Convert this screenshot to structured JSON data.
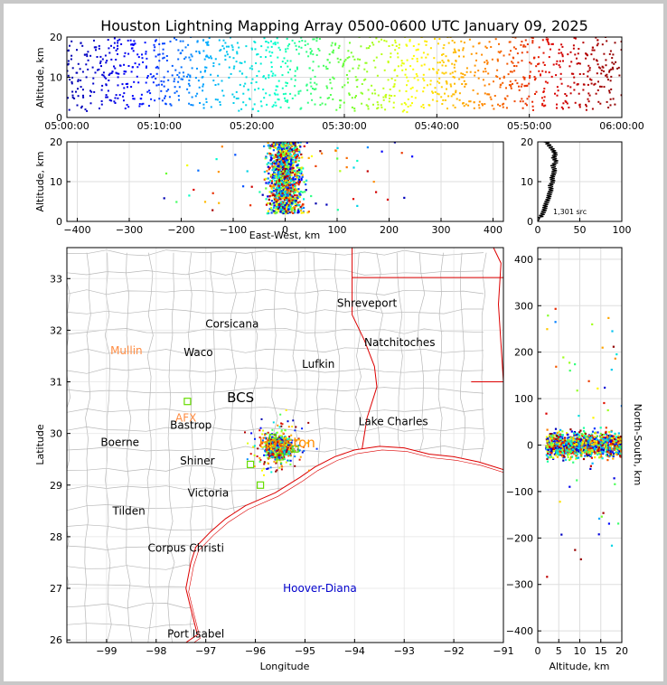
{
  "chart_data": [
    {
      "type": "scatter",
      "panel": "altitude-vs-time",
      "title": "Houston Lightning Mapping Array 0500-0600 UTC January 09, 2025",
      "ylabel": "Altitude, km",
      "xlabel": "",
      "xlim": [
        "05:00:00",
        "06:00:00"
      ],
      "ylim": [
        0,
        20
      ],
      "x_tick_labels": [
        "05:00:00",
        "05:10:00",
        "05:20:00",
        "05:30:00",
        "05:40:00",
        "05:50:00",
        "06:00:00"
      ],
      "y_ticks": [
        0,
        10,
        20
      ],
      "grid": true,
      "color_encoding": "time",
      "colors": [
        "#0000aa",
        "#0000ff",
        "#00aaff",
        "#00ffcc",
        "#66ff33",
        "#ffff00",
        "#ff8800",
        "#dd0000",
        "#880000"
      ]
    },
    {
      "type": "scatter",
      "panel": "altitude-vs-east-west",
      "xlabel": "East-West, km",
      "ylabel": "Altitude, km",
      "xlim": [
        -420,
        420
      ],
      "ylim": [
        0,
        20
      ],
      "x_ticks": [
        -400,
        -300,
        -200,
        -100,
        0,
        100,
        200,
        300,
        400
      ],
      "y_ticks": [
        0,
        10,
        20
      ],
      "grid": true
    },
    {
      "type": "line",
      "panel": "altitude-histogram",
      "xlim": [
        0,
        100
      ],
      "ylim": [
        0,
        20
      ],
      "x_ticks": [
        0,
        50,
        100
      ],
      "y_ticks": [
        0,
        10,
        20
      ],
      "annotation": "1,301 src",
      "grid": true,
      "profile": [
        {
          "altitude": 0,
          "count": 0
        },
        {
          "altitude": 1,
          "count": 3
        },
        {
          "altitude": 2,
          "count": 6
        },
        {
          "altitude": 3,
          "count": 8
        },
        {
          "altitude": 4,
          "count": 9
        },
        {
          "altitude": 5,
          "count": 11
        },
        {
          "altitude": 6,
          "count": 13
        },
        {
          "altitude": 7,
          "count": 14
        },
        {
          "altitude": 8,
          "count": 16
        },
        {
          "altitude": 9,
          "count": 15
        },
        {
          "altitude": 10,
          "count": 18
        },
        {
          "altitude": 11,
          "count": 17
        },
        {
          "altitude": 12,
          "count": 19
        },
        {
          "altitude": 13,
          "count": 20
        },
        {
          "altitude": 14,
          "count": 18
        },
        {
          "altitude": 15,
          "count": 22
        },
        {
          "altitude": 16,
          "count": 19
        },
        {
          "altitude": 17,
          "count": 21
        },
        {
          "altitude": 18,
          "count": 18
        },
        {
          "altitude": 19,
          "count": 14
        },
        {
          "altitude": 20,
          "count": 10
        }
      ]
    },
    {
      "type": "scatter",
      "panel": "plan-view-map",
      "xlabel": "Longitude",
      "ylabel": "Latitude",
      "xlim": [
        -99.8,
        -91
      ],
      "ylim": [
        25.95,
        33.6
      ],
      "x_ticks": [
        -99,
        -98,
        -97,
        -96,
        -95,
        -94,
        -93,
        -92,
        -91
      ],
      "y_ticks": [
        26,
        27,
        28,
        29,
        30,
        31,
        32,
        33
      ],
      "grid": true,
      "cities": [
        {
          "name": "Shreveport",
          "lon": -93.75,
          "lat": 32.52,
          "color": "#000000"
        },
        {
          "name": "Corsicana",
          "lon": -96.47,
          "lat": 32.12,
          "color": "#000000"
        },
        {
          "name": "Natchitoches",
          "lon": -93.09,
          "lat": 31.76,
          "color": "#000000"
        },
        {
          "name": "Mullin",
          "lon": -98.6,
          "lat": 31.6,
          "color": "#ff8c42"
        },
        {
          "name": "Waco",
          "lon": -97.15,
          "lat": 31.57,
          "color": "#000000"
        },
        {
          "name": "Lufkin",
          "lon": -94.73,
          "lat": 31.34,
          "color": "#000000"
        },
        {
          "name": "BCS",
          "lon": -96.3,
          "lat": 30.68,
          "color": "#000000"
        },
        {
          "name": "AFX",
          "lon": -97.4,
          "lat": 30.3,
          "color": "#ff8c42"
        },
        {
          "name": "Lake Charles",
          "lon": -93.22,
          "lat": 30.23,
          "color": "#000000"
        },
        {
          "name": "Bastrop",
          "lon": -97.3,
          "lat": 30.16,
          "color": "#000000"
        },
        {
          "name": "Boerne",
          "lon": -98.73,
          "lat": 29.83,
          "color": "#000000"
        },
        {
          "name": "Houston",
          "lon": -95.36,
          "lat": 29.8,
          "color": "#ff8c00"
        },
        {
          "name": "Shiner",
          "lon": -97.17,
          "lat": 29.47,
          "color": "#000000"
        },
        {
          "name": "Victoria",
          "lon": -96.95,
          "lat": 28.85,
          "color": "#000000"
        },
        {
          "name": "Tilden",
          "lon": -98.55,
          "lat": 28.5,
          "color": "#000000"
        },
        {
          "name": "Corpus Christi",
          "lon": -97.4,
          "lat": 27.78,
          "color": "#000000"
        },
        {
          "name": "Hoover-Diana",
          "lon": -94.7,
          "lat": 27.0,
          "color": "#0000cc"
        },
        {
          "name": "Port Isabel",
          "lon": -97.2,
          "lat": 26.12,
          "color": "#000000"
        }
      ],
      "stations": [
        {
          "lon": -97.37,
          "lat": 30.62
        },
        {
          "lon": -95.65,
          "lat": 29.92
        },
        {
          "lon": -95.2,
          "lat": 29.7
        },
        {
          "lon": -95.9,
          "lat": 29.0
        },
        {
          "lon": -95.5,
          "lat": 29.55
        },
        {
          "lon": -96.1,
          "lat": 29.4
        }
      ],
      "storm_center": {
        "lon": -95.55,
        "lat": 29.75
      }
    },
    {
      "type": "scatter",
      "panel": "north-south-vs-altitude",
      "xlabel": "Altitude, km",
      "ylabel": "North-South, km",
      "xlim": [
        0,
        20
      ],
      "ylim": [
        -425,
        425
      ],
      "x_ticks": [
        0,
        5,
        10,
        15,
        20
      ],
      "y_ticks": [
        -400,
        -300,
        -200,
        -100,
        0,
        100,
        200,
        300,
        400
      ],
      "grid": true
    }
  ]
}
